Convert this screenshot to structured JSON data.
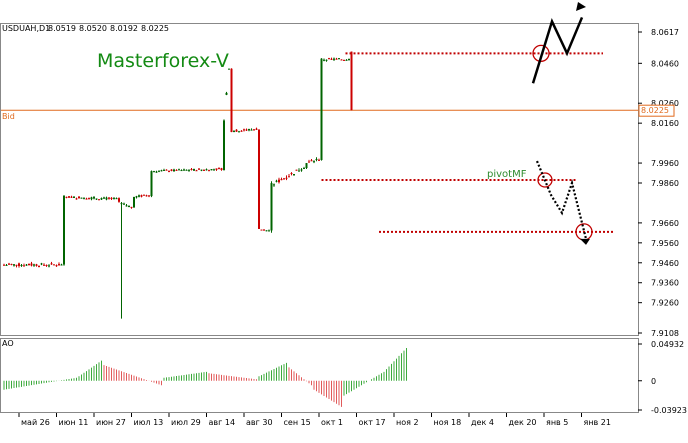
{
  "header": {
    "symbol": "USDUAH,D1",
    "open": "8.0519",
    "high": "8.0520",
    "low": "8.0192",
    "close": "8.0225"
  },
  "watermark": "Masterforex-V",
  "bid_label": "Bid",
  "bid_value": "8.0225",
  "pivot_label": "pivotMF",
  "ao_label": "AO",
  "colors": {
    "bull": "#006400",
    "bear": "#cc0000",
    "watermark": "#138a13",
    "bid_line": "#e06a1e",
    "level_line": "#c00000",
    "arrow": "#000000",
    "ao_up": "#3caa3c",
    "ao_down": "#e15a5a"
  },
  "chart_data": [
    {
      "type": "candlestick",
      "ylim": [
        7.9108,
        8.0617
      ],
      "ytick_labels": [
        "8.0617",
        "8.0460",
        "8.0260",
        "8.0160",
        "7.9960",
        "7.9860",
        "7.9660",
        "7.9560",
        "7.9460",
        "7.9360",
        "7.9260",
        "7.9108"
      ],
      "xtick_labels": [
        "май 26",
        "июн 11",
        "июн 27",
        "июл 13",
        "июл 29",
        "авг 14",
        "авг 30",
        "сен 15",
        "окт 1",
        "окт 17",
        "ноя 2",
        "ноя 18",
        "дек 4",
        "дек 20",
        "янв 5",
        "янв 21"
      ],
      "last_close": 8.0225,
      "segments": [
        {
          "bars": 24,
          "from": 7.945,
          "to": 7.945,
          "noise": 0.0015
        },
        {
          "bars": 22,
          "from": 7.979,
          "to": 7.978,
          "noise": 0.0012
        },
        {
          "bars": 6,
          "from": 7.976,
          "to": 7.974,
          "noise": 0.0012,
          "spike_low": 7.918
        },
        {
          "bars": 7,
          "from": 7.979,
          "to": 7.98,
          "noise": 0.0012
        },
        {
          "bars": 29,
          "from": 7.992,
          "to": 7.993,
          "noise": 0.001
        },
        {
          "bars": 3,
          "from": 8.018,
          "to": 8.043,
          "noise": 0.0015
        },
        {
          "bars": 11,
          "from": 8.012,
          "to": 8.013,
          "noise": 0.0012
        },
        {
          "bars": 5,
          "from": 7.963,
          "to": 7.962,
          "noise": 0.001
        },
        {
          "bars": 14,
          "from": 7.985,
          "to": 7.994,
          "noise": 0.002
        },
        {
          "bars": 6,
          "from": 7.996,
          "to": 7.998,
          "noise": 0.0015
        },
        {
          "bars": 12,
          "from": 8.048,
          "to": 8.048,
          "noise": 0.0012
        },
        {
          "bars": 1,
          "from": 8.0519,
          "to": 8.0225,
          "noise": 0.0
        }
      ],
      "levels": [
        {
          "value": 8.051,
          "from_date": "ноя 18"
        },
        {
          "value": 7.9875,
          "from_date": "ноя 11"
        },
        {
          "value": 7.9615,
          "from_date": "окт 13"
        }
      ]
    },
    {
      "type": "bar",
      "name": "AO",
      "ylim": [
        -0.03923,
        0.04932
      ],
      "ytick_labels": [
        "0.04932",
        "0",
        "-0.03923"
      ],
      "segments": [
        {
          "bars": 30,
          "from": -0.012,
          "to": 0.004
        },
        {
          "bars": 10,
          "from": 0.006,
          "to": 0.027
        },
        {
          "bars": 24,
          "from": 0.021,
          "to": -0.006
        },
        {
          "bars": 18,
          "from": 0.004,
          "to": 0.012
        },
        {
          "bars": 20,
          "from": 0.01,
          "to": 0.002
        },
        {
          "bars": 12,
          "from": 0.006,
          "to": 0.024
        },
        {
          "bars": 10,
          "from": 0.018,
          "to": -0.006
        },
        {
          "bars": 12,
          "from": -0.012,
          "to": -0.035
        },
        {
          "bars": 16,
          "from": -0.02,
          "to": 0.01
        },
        {
          "bars": 10,
          "from": 0.012,
          "to": 0.044
        }
      ]
    }
  ]
}
